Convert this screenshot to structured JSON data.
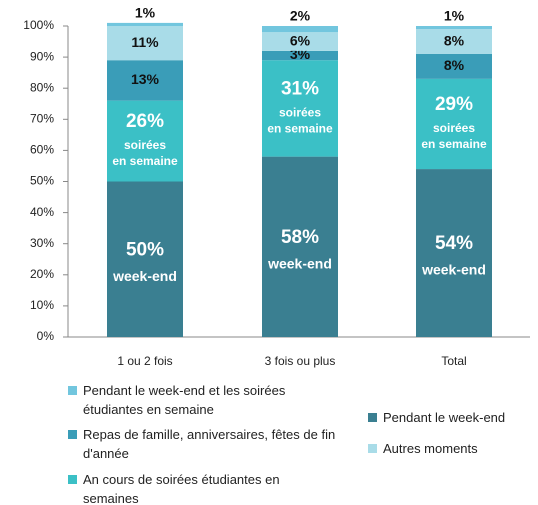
{
  "chart_data": {
    "type": "stacked_bar",
    "categories": [
      "1 ou 2 fois",
      "3 fois ou plus",
      "Total"
    ],
    "ylim": [
      0,
      100
    ],
    "yticks": [
      {
        "value": 0,
        "label": "0%"
      },
      {
        "value": 10,
        "label": "10%"
      },
      {
        "value": 20,
        "label": "20%"
      },
      {
        "value": 30,
        "label": "30%"
      },
      {
        "value": 40,
        "label": "40%"
      },
      {
        "value": 50,
        "label": "50%"
      },
      {
        "value": 60,
        "label": "60%"
      },
      {
        "value": 70,
        "label": "70%"
      },
      {
        "value": 80,
        "label": "80%"
      },
      {
        "value": 90,
        "label": "90%"
      },
      {
        "value": 100,
        "label": "100%"
      }
    ],
    "series": [
      {
        "name": "Pendant le week-end",
        "color": "#3a7f91",
        "label_color": "#ffffff",
        "values": [
          50,
          58,
          54
        ],
        "value_labels": [
          "50%",
          "58%",
          "54%"
        ],
        "inner_label": [
          "week-end"
        ]
      },
      {
        "name": "An cours de soirées étudiantes en semaines",
        "color": "#3bc0c6",
        "label_color": "#ffffff",
        "values": [
          26,
          31,
          29
        ],
        "value_labels": [
          "26%",
          "31%",
          "29%"
        ],
        "inner_label": [
          "soirées",
          "en semaine"
        ]
      },
      {
        "name": "Repas de famille, anniversaires, fêtes de fin d'année",
        "color": "#3a9db8",
        "label_color": "#111111",
        "values": [
          13,
          3,
          8
        ],
        "value_labels": [
          "13%",
          "3%",
          "8%"
        ]
      },
      {
        "name": "Autres moments",
        "color": "#a9dce8",
        "label_color": "#111111",
        "values": [
          11,
          6,
          8
        ],
        "value_labels": [
          "11%",
          "6%",
          "8%"
        ]
      },
      {
        "name": "Pendant le week-end et les soirées étudiantes en semaine",
        "color": "#72c6de",
        "label_color": "#111111",
        "values": [
          1,
          2,
          1
        ],
        "value_labels": [
          "1%",
          "2%",
          "1%"
        ]
      }
    ]
  }
}
